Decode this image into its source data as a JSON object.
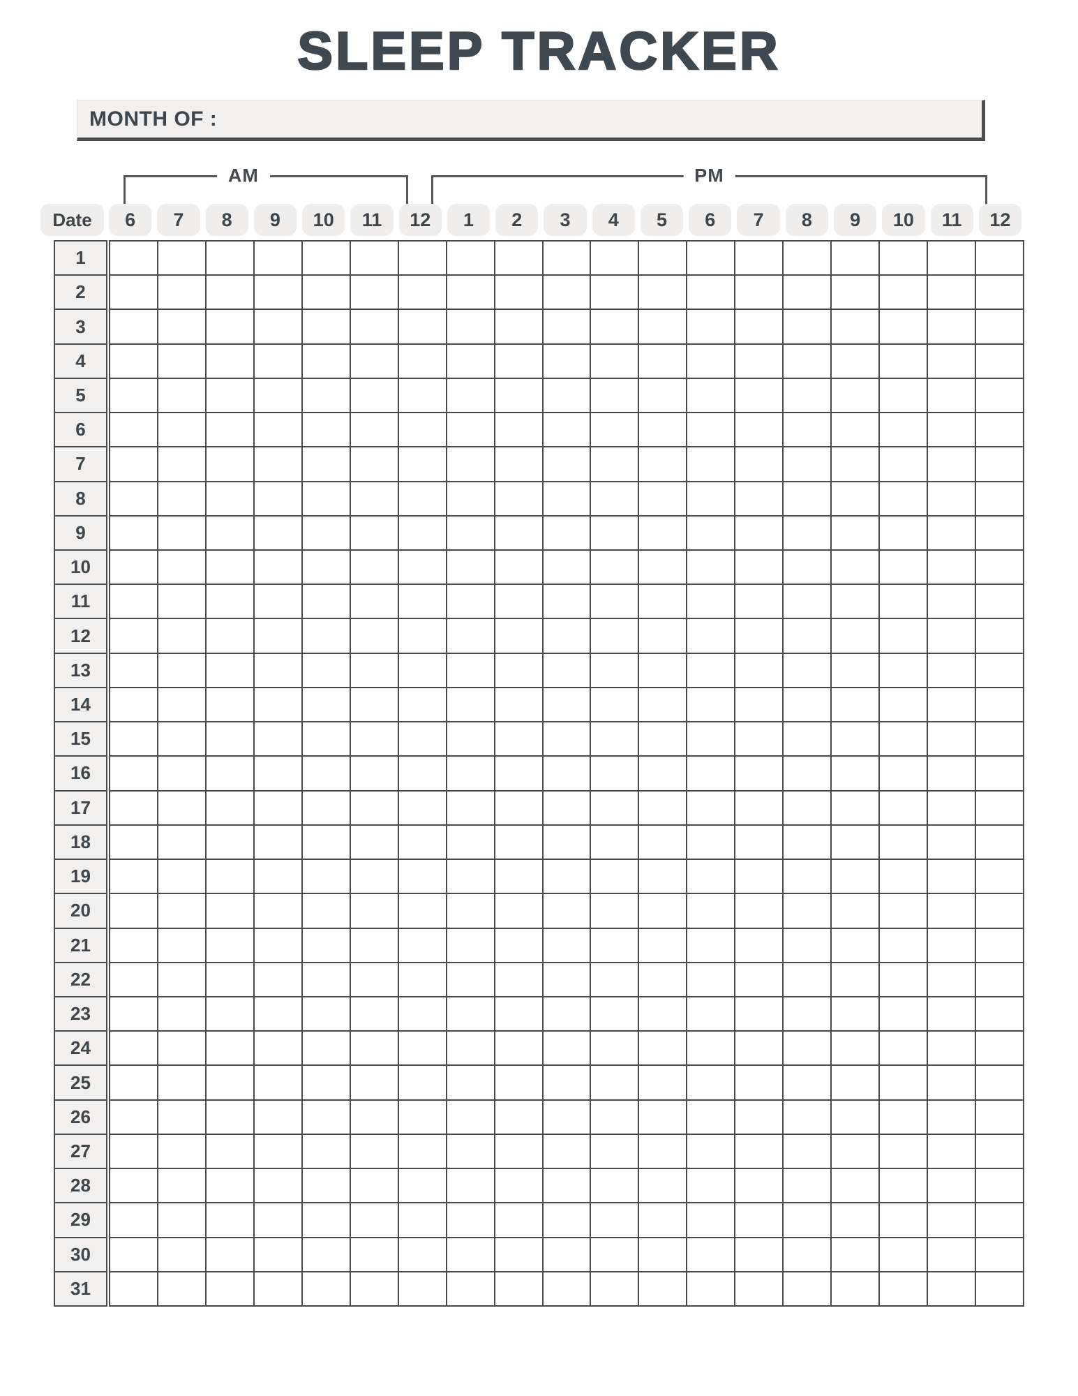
{
  "title": "SLEEP TRACKER",
  "month_field": {
    "label": "MONTH OF :",
    "value": ""
  },
  "meridiem": {
    "am": "AM",
    "pm": "PM"
  },
  "table": {
    "date_header": "Date",
    "hours": [
      "6",
      "7",
      "8",
      "9",
      "10",
      "11",
      "12",
      "1",
      "2",
      "3",
      "4",
      "5",
      "6",
      "7",
      "8",
      "9",
      "10",
      "11",
      "12"
    ],
    "dates": [
      "1",
      "2",
      "3",
      "4",
      "5",
      "6",
      "7",
      "8",
      "9",
      "10",
      "11",
      "12",
      "13",
      "14",
      "15",
      "16",
      "17",
      "18",
      "19",
      "20",
      "21",
      "22",
      "23",
      "24",
      "25",
      "26",
      "27",
      "28",
      "29",
      "30",
      "31"
    ]
  },
  "colors": {
    "ink": "#474b4e",
    "title": "#3e4850",
    "cell_fill": "#f1f0ee",
    "pill_fill": "#efeeec",
    "background": "#ffffff"
  }
}
